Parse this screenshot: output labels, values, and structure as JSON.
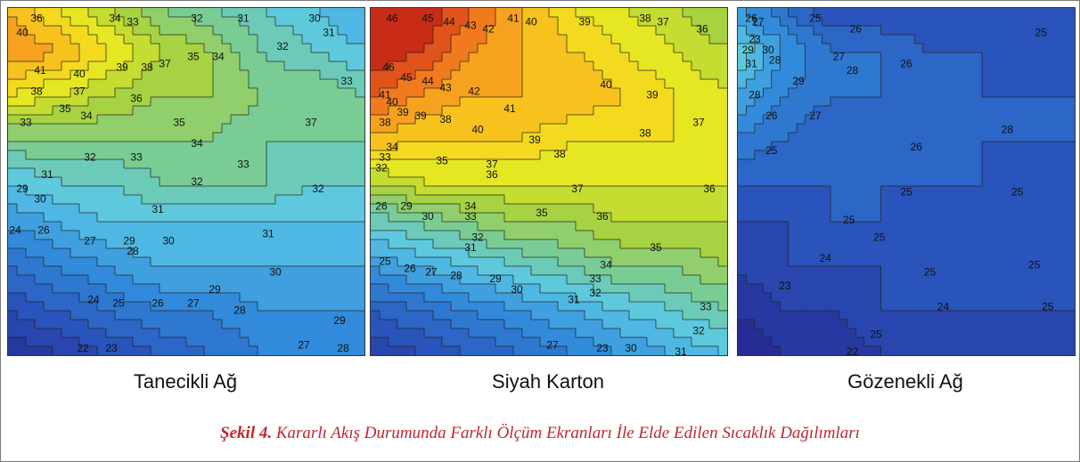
{
  "caption": {
    "figure": "Şekil 4.",
    "text": " Kararlı Akış Durumunda Farklı Ölçüm Ekranları İle Elde Edilen Sıcaklık Dağılımları"
  },
  "chart_data": [
    {
      "type": "heatmap",
      "subtitle": "Tanecikli Ağ",
      "vmin": 22,
      "vmax": 44,
      "rows": [
        [
          40,
          38,
          36,
          34,
          33,
          32,
          31,
          30
        ],
        [
          41,
          40,
          38,
          36,
          35,
          33,
          32,
          31
        ],
        [
          38,
          37,
          36,
          35,
          35,
          34,
          34,
          33
        ],
        [
          34,
          34,
          34,
          34,
          34,
          33,
          33,
          33
        ],
        [
          31,
          32,
          32,
          33,
          33,
          33,
          32,
          32
        ],
        [
          29,
          30,
          31,
          31,
          31,
          31,
          31,
          31
        ],
        [
          27,
          28,
          29,
          30,
          30,
          30,
          30,
          30
        ],
        [
          25,
          26,
          27,
          28,
          28,
          29,
          29,
          29
        ],
        [
          23,
          24,
          25,
          26,
          27,
          28,
          28,
          28
        ]
      ],
      "labels": [
        {
          "t": "36",
          "x": 0.08,
          "y": 0.02
        },
        {
          "t": "34",
          "x": 0.3,
          "y": 0.02
        },
        {
          "t": "33",
          "x": 0.35,
          "y": 0.04
        },
        {
          "t": "32",
          "x": 0.53,
          "y": 0.02
        },
        {
          "t": "31",
          "x": 0.66,
          "y": 0.03
        },
        {
          "t": "30",
          "x": 0.86,
          "y": 0.02
        },
        {
          "t": "40",
          "x": 0.04,
          "y": 0.07
        },
        {
          "t": "35",
          "x": 0.52,
          "y": 0.14
        },
        {
          "t": "34",
          "x": 0.59,
          "y": 0.14
        },
        {
          "t": "32",
          "x": 0.77,
          "y": 0.11
        },
        {
          "t": "31",
          "x": 0.9,
          "y": 0.07
        },
        {
          "t": "41",
          "x": 0.09,
          "y": 0.18
        },
        {
          "t": "40",
          "x": 0.2,
          "y": 0.19
        },
        {
          "t": "39",
          "x": 0.32,
          "y": 0.17
        },
        {
          "t": "38",
          "x": 0.39,
          "y": 0.17
        },
        {
          "t": "37",
          "x": 0.44,
          "y": 0.16
        },
        {
          "t": "33",
          "x": 0.95,
          "y": 0.21
        },
        {
          "t": "38",
          "x": 0.08,
          "y": 0.24
        },
        {
          "t": "37",
          "x": 0.2,
          "y": 0.24
        },
        {
          "t": "36",
          "x": 0.36,
          "y": 0.26
        },
        {
          "t": "35",
          "x": 0.16,
          "y": 0.29
        },
        {
          "t": "34",
          "x": 0.22,
          "y": 0.31
        },
        {
          "t": "33",
          "x": 0.05,
          "y": 0.33
        },
        {
          "t": "35",
          "x": 0.48,
          "y": 0.33
        },
        {
          "t": "37",
          "x": 0.85,
          "y": 0.33
        },
        {
          "t": "34",
          "x": 0.53,
          "y": 0.39
        },
        {
          "t": "32",
          "x": 0.23,
          "y": 0.43
        },
        {
          "t": "33",
          "x": 0.36,
          "y": 0.43
        },
        {
          "t": "33",
          "x": 0.66,
          "y": 0.45
        },
        {
          "t": "31",
          "x": 0.11,
          "y": 0.48
        },
        {
          "t": "32",
          "x": 0.53,
          "y": 0.5
        },
        {
          "t": "32",
          "x": 0.87,
          "y": 0.52
        },
        {
          "t": "29",
          "x": 0.04,
          "y": 0.52
        },
        {
          "t": "30",
          "x": 0.09,
          "y": 0.55
        },
        {
          "t": "31",
          "x": 0.42,
          "y": 0.58
        },
        {
          "t": "24",
          "x": 0.02,
          "y": 0.64
        },
        {
          "t": "26",
          "x": 0.1,
          "y": 0.64
        },
        {
          "t": "27",
          "x": 0.23,
          "y": 0.67
        },
        {
          "t": "29",
          "x": 0.34,
          "y": 0.67
        },
        {
          "t": "30",
          "x": 0.45,
          "y": 0.67
        },
        {
          "t": "31",
          "x": 0.73,
          "y": 0.65
        },
        {
          "t": "28",
          "x": 0.35,
          "y": 0.7
        },
        {
          "t": "30",
          "x": 0.75,
          "y": 0.76
        },
        {
          "t": "29",
          "x": 0.58,
          "y": 0.81
        },
        {
          "t": "27",
          "x": 0.52,
          "y": 0.85
        },
        {
          "t": "26",
          "x": 0.42,
          "y": 0.85
        },
        {
          "t": "28",
          "x": 0.65,
          "y": 0.87
        },
        {
          "t": "25",
          "x": 0.31,
          "y": 0.85
        },
        {
          "t": "24",
          "x": 0.24,
          "y": 0.84
        },
        {
          "t": "29",
          "x": 0.93,
          "y": 0.9
        },
        {
          "t": "23",
          "x": 0.29,
          "y": 0.98
        },
        {
          "t": "22",
          "x": 0.21,
          "y": 0.98
        },
        {
          "t": "27",
          "x": 0.83,
          "y": 0.97
        },
        {
          "t": "28",
          "x": 0.94,
          "y": 0.98
        }
      ]
    },
    {
      "type": "heatmap",
      "subtitle": "Siyah Karton",
      "vmin": 22,
      "vmax": 44,
      "rows": [
        [
          43,
          44,
          42,
          40,
          38,
          37,
          36,
          35
        ],
        [
          44,
          43,
          41,
          40,
          39,
          38,
          37,
          36
        ],
        [
          42,
          41,
          40,
          40,
          40,
          39,
          38,
          37
        ],
        [
          40,
          39,
          39,
          39,
          38,
          38,
          38,
          37
        ],
        [
          36,
          37,
          37,
          37,
          37,
          37,
          37,
          37
        ],
        [
          32,
          33,
          34,
          35,
          35,
          36,
          36,
          36
        ],
        [
          29,
          30,
          31,
          32,
          33,
          34,
          34,
          35
        ],
        [
          26,
          27,
          28,
          29,
          30,
          31,
          32,
          33
        ],
        [
          24,
          25,
          26,
          27,
          28,
          29,
          30,
          31
        ]
      ],
      "labels": [
        {
          "t": "46",
          "x": 0.06,
          "y": 0.03
        },
        {
          "t": "45",
          "x": 0.16,
          "y": 0.03
        },
        {
          "t": "44",
          "x": 0.22,
          "y": 0.04
        },
        {
          "t": "43",
          "x": 0.28,
          "y": 0.05
        },
        {
          "t": "42",
          "x": 0.33,
          "y": 0.06
        },
        {
          "t": "41",
          "x": 0.4,
          "y": 0.03
        },
        {
          "t": "40",
          "x": 0.45,
          "y": 0.04
        },
        {
          "t": "39",
          "x": 0.6,
          "y": 0.04
        },
        {
          "t": "38",
          "x": 0.77,
          "y": 0.03
        },
        {
          "t": "37",
          "x": 0.82,
          "y": 0.04
        },
        {
          "t": "36",
          "x": 0.93,
          "y": 0.06
        },
        {
          "t": "46",
          "x": 0.05,
          "y": 0.17
        },
        {
          "t": "45",
          "x": 0.1,
          "y": 0.2
        },
        {
          "t": "44",
          "x": 0.16,
          "y": 0.21
        },
        {
          "t": "43",
          "x": 0.21,
          "y": 0.23
        },
        {
          "t": "42",
          "x": 0.29,
          "y": 0.24
        },
        {
          "t": "41",
          "x": 0.39,
          "y": 0.29
        },
        {
          "t": "40",
          "x": 0.66,
          "y": 0.22
        },
        {
          "t": "39",
          "x": 0.79,
          "y": 0.25
        },
        {
          "t": "41",
          "x": 0.04,
          "y": 0.25
        },
        {
          "t": "40",
          "x": 0.06,
          "y": 0.27
        },
        {
          "t": "39",
          "x": 0.09,
          "y": 0.3
        },
        {
          "t": "38",
          "x": 0.04,
          "y": 0.33
        },
        {
          "t": "39",
          "x": 0.14,
          "y": 0.31
        },
        {
          "t": "38",
          "x": 0.21,
          "y": 0.32
        },
        {
          "t": "40",
          "x": 0.3,
          "y": 0.35
        },
        {
          "t": "39",
          "x": 0.46,
          "y": 0.38
        },
        {
          "t": "38",
          "x": 0.53,
          "y": 0.42
        },
        {
          "t": "38",
          "x": 0.77,
          "y": 0.36
        },
        {
          "t": "37",
          "x": 0.92,
          "y": 0.33
        },
        {
          "t": "34",
          "x": 0.06,
          "y": 0.4
        },
        {
          "t": "33",
          "x": 0.04,
          "y": 0.43
        },
        {
          "t": "32",
          "x": 0.03,
          "y": 0.46
        },
        {
          "t": "37",
          "x": 0.34,
          "y": 0.45
        },
        {
          "t": "36",
          "x": 0.34,
          "y": 0.48
        },
        {
          "t": "35",
          "x": 0.2,
          "y": 0.44
        },
        {
          "t": "37",
          "x": 0.58,
          "y": 0.52
        },
        {
          "t": "36",
          "x": 0.95,
          "y": 0.52
        },
        {
          "t": "35",
          "x": 0.48,
          "y": 0.59
        },
        {
          "t": "34",
          "x": 0.28,
          "y": 0.57
        },
        {
          "t": "33",
          "x": 0.28,
          "y": 0.6
        },
        {
          "t": "36",
          "x": 0.65,
          "y": 0.6
        },
        {
          "t": "30",
          "x": 0.16,
          "y": 0.6
        },
        {
          "t": "29",
          "x": 0.1,
          "y": 0.57
        },
        {
          "t": "26",
          "x": 0.03,
          "y": 0.57
        },
        {
          "t": "32",
          "x": 0.3,
          "y": 0.66
        },
        {
          "t": "31",
          "x": 0.28,
          "y": 0.69
        },
        {
          "t": "35",
          "x": 0.8,
          "y": 0.69
        },
        {
          "t": "34",
          "x": 0.66,
          "y": 0.74
        },
        {
          "t": "33",
          "x": 0.63,
          "y": 0.78
        },
        {
          "t": "32",
          "x": 0.63,
          "y": 0.82
        },
        {
          "t": "31",
          "x": 0.57,
          "y": 0.84
        },
        {
          "t": "30",
          "x": 0.41,
          "y": 0.81
        },
        {
          "t": "29",
          "x": 0.35,
          "y": 0.78
        },
        {
          "t": "28",
          "x": 0.24,
          "y": 0.77
        },
        {
          "t": "27",
          "x": 0.17,
          "y": 0.76
        },
        {
          "t": "26",
          "x": 0.11,
          "y": 0.75
        },
        {
          "t": "25",
          "x": 0.04,
          "y": 0.73
        },
        {
          "t": "33",
          "x": 0.94,
          "y": 0.86
        },
        {
          "t": "32",
          "x": 0.92,
          "y": 0.93
        },
        {
          "t": "27",
          "x": 0.51,
          "y": 0.97
        },
        {
          "t": "23",
          "x": 0.65,
          "y": 0.98
        },
        {
          "t": "30",
          "x": 0.73,
          "y": 0.98
        },
        {
          "t": "31",
          "x": 0.87,
          "y": 0.99
        }
      ]
    },
    {
      "type": "heatmap",
      "subtitle": "Gözenekli Ağ",
      "vmin": 22,
      "vmax": 44,
      "rows": [
        [
          29,
          27,
          25,
          25,
          25,
          25,
          25,
          25
        ],
        [
          32,
          29,
          27,
          27,
          26,
          26,
          25,
          25
        ],
        [
          30,
          28,
          27,
          27,
          26,
          26,
          26,
          26
        ],
        [
          28,
          27,
          26,
          26,
          26,
          26,
          26,
          26
        ],
        [
          26,
          26,
          26,
          26,
          26,
          26,
          25,
          25
        ],
        [
          25,
          25,
          26,
          26,
          25,
          25,
          25,
          25
        ],
        [
          24,
          25,
          25,
          25,
          25,
          25,
          25,
          25
        ],
        [
          23,
          24,
          24,
          25,
          25,
          25,
          25,
          25
        ],
        [
          22,
          23,
          23,
          24,
          24,
          24,
          24,
          24
        ]
      ],
      "labels": [
        {
          "t": "26",
          "x": 0.04,
          "y": 0.01
        },
        {
          "t": "25",
          "x": 0.23,
          "y": 0.01
        },
        {
          "t": "27",
          "x": 0.06,
          "y": 0.04
        },
        {
          "t": "26",
          "x": 0.35,
          "y": 0.06
        },
        {
          "t": "25",
          "x": 0.9,
          "y": 0.07
        },
        {
          "t": "23",
          "x": 0.05,
          "y": 0.09
        },
        {
          "t": "29",
          "x": 0.03,
          "y": 0.12
        },
        {
          "t": "30",
          "x": 0.09,
          "y": 0.12
        },
        {
          "t": "28",
          "x": 0.11,
          "y": 0.15
        },
        {
          "t": "27",
          "x": 0.3,
          "y": 0.14
        },
        {
          "t": "26",
          "x": 0.5,
          "y": 0.16
        },
        {
          "t": "31",
          "x": 0.04,
          "y": 0.16
        },
        {
          "t": "28",
          "x": 0.34,
          "y": 0.18
        },
        {
          "t": "29",
          "x": 0.18,
          "y": 0.21
        },
        {
          "t": "28",
          "x": 0.05,
          "y": 0.25
        },
        {
          "t": "27",
          "x": 0.23,
          "y": 0.31
        },
        {
          "t": "26",
          "x": 0.1,
          "y": 0.31
        },
        {
          "t": "26",
          "x": 0.53,
          "y": 0.4
        },
        {
          "t": "28",
          "x": 0.8,
          "y": 0.35
        },
        {
          "t": "25",
          "x": 0.1,
          "y": 0.41
        },
        {
          "t": "25",
          "x": 0.5,
          "y": 0.53
        },
        {
          "t": "25",
          "x": 0.83,
          "y": 0.53
        },
        {
          "t": "25",
          "x": 0.33,
          "y": 0.61
        },
        {
          "t": "25",
          "x": 0.42,
          "y": 0.66
        },
        {
          "t": "24",
          "x": 0.26,
          "y": 0.72
        },
        {
          "t": "25",
          "x": 0.57,
          "y": 0.76
        },
        {
          "t": "25",
          "x": 0.88,
          "y": 0.74
        },
        {
          "t": "23",
          "x": 0.14,
          "y": 0.8
        },
        {
          "t": "24",
          "x": 0.61,
          "y": 0.86
        },
        {
          "t": "25",
          "x": 0.92,
          "y": 0.86
        },
        {
          "t": "25",
          "x": 0.41,
          "y": 0.94
        },
        {
          "t": "22",
          "x": 0.34,
          "y": 0.99
        }
      ]
    }
  ]
}
